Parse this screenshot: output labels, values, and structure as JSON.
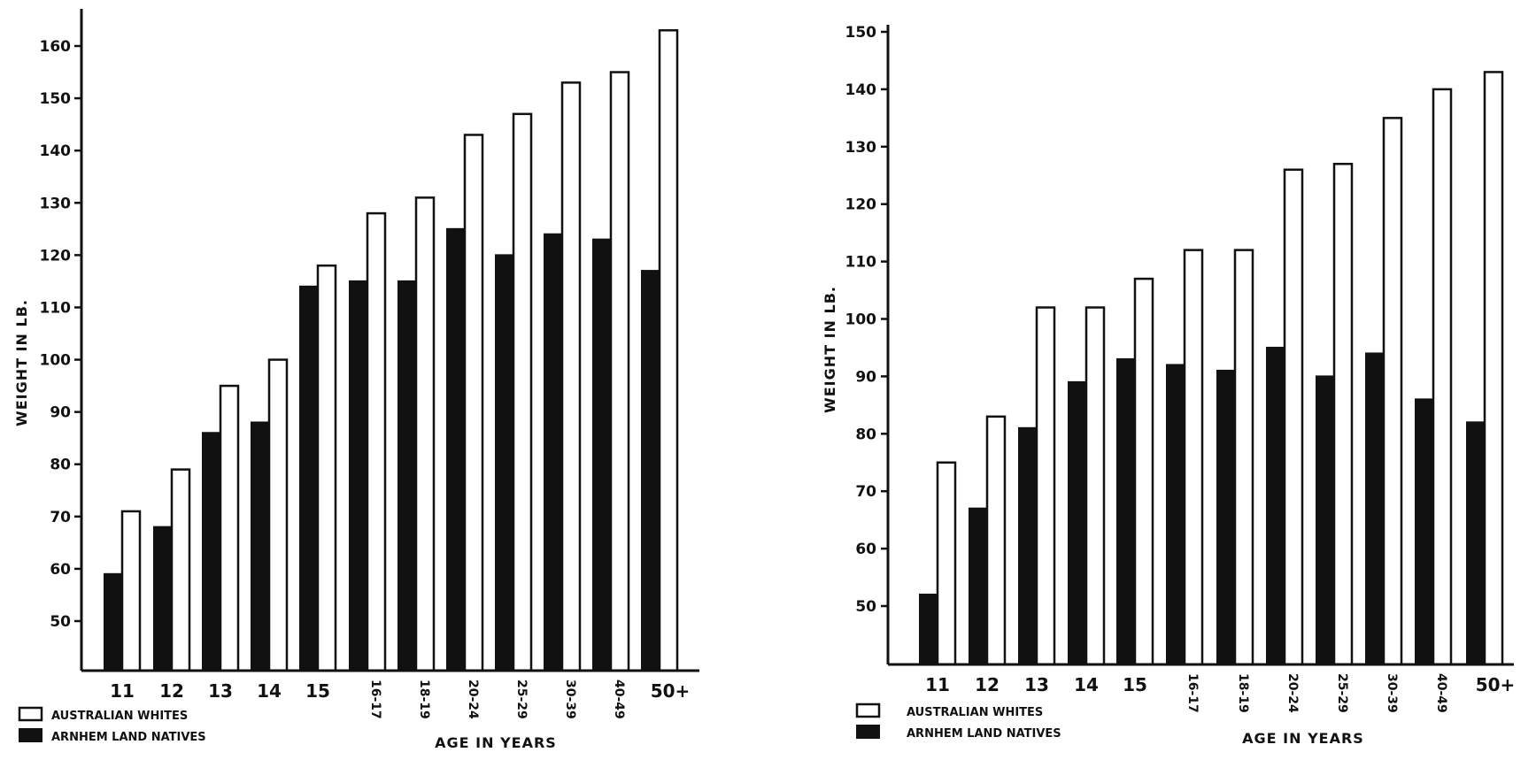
{
  "chart_data": [
    {
      "type": "bar",
      "xlabel": "AGE IN YEARS",
      "ylabel": "WEIGHT IN LB.",
      "ylim": [
        40,
        164
      ],
      "yticks": [
        50,
        60,
        70,
        80,
        90,
        100,
        110,
        120,
        130,
        140,
        150,
        160
      ],
      "ytick_labels": [
        "50",
        "60",
        "70",
        "80",
        "90",
        "100",
        "110",
        "120",
        "130",
        "140",
        "150",
        "160"
      ],
      "categories": [
        "11",
        "12",
        "13",
        "14",
        "15",
        "16-17",
        "18-19",
        "20-24",
        "25-29",
        "30-39",
        "40-49",
        "50+"
      ],
      "series": [
        {
          "name": "ARNHEM LAND NATIVES",
          "color": "#111111",
          "values": [
            59,
            68,
            86,
            88,
            114,
            115,
            115,
            125,
            120,
            124,
            123,
            117
          ]
        },
        {
          "name": "AUSTRALIAN WHITES",
          "color": "#ffffff",
          "values": [
            71,
            79,
            95,
            100,
            118,
            128,
            131,
            143,
            147,
            153,
            155,
            163
          ]
        }
      ],
      "legend": "bottom-left",
      "grid": false
    },
    {
      "type": "bar",
      "xlabel": "AGE IN YEARS",
      "ylabel": "WEIGHT IN LB.",
      "ylim": [
        40,
        151
      ],
      "yticks": [
        50,
        60,
        70,
        80,
        90,
        100,
        110,
        120,
        130,
        140,
        150
      ],
      "ytick_labels": [
        "50",
        "60",
        "70",
        "80",
        "90",
        "100",
        "110",
        "120",
        "130",
        "140",
        "150"
      ],
      "categories": [
        "11",
        "12",
        "13",
        "14",
        "15",
        "16-17",
        "18-19",
        "20-24",
        "25-29",
        "30-39",
        "40-49",
        "50+"
      ],
      "series": [
        {
          "name": "ARNHEM LAND NATIVES",
          "color": "#111111",
          "values": [
            52,
            67,
            81,
            89,
            93,
            92,
            91,
            95,
            90,
            94,
            86,
            82
          ]
        },
        {
          "name": "AUSTRALIAN WHITES",
          "color": "#ffffff",
          "values": [
            75,
            83,
            102,
            102,
            107,
            112,
            112,
            126,
            127,
            135,
            140,
            143
          ]
        }
      ],
      "legend": "bottom-left",
      "grid": false
    }
  ],
  "legend": {
    "whites_label": "AUSTRALIAN WHITES",
    "natives_label": "ARNHEM LAND NATIVES"
  },
  "colors": {
    "ink": "#111111",
    "paper": "#ffffff"
  }
}
